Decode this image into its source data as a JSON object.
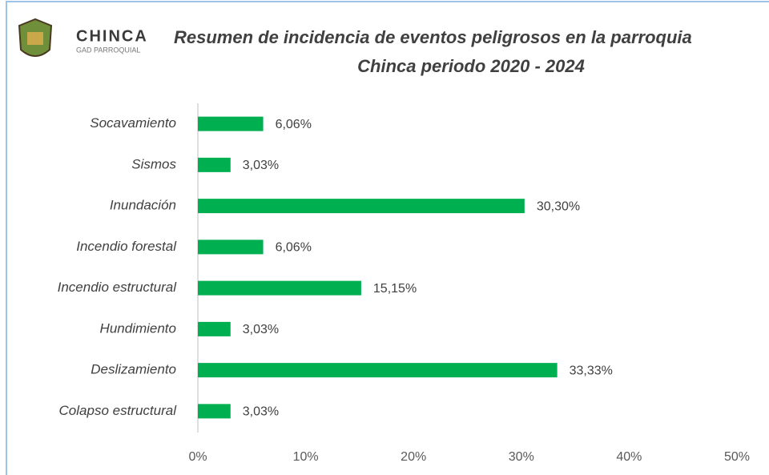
{
  "chart_data": {
    "type": "barh",
    "logo": {
      "name": "CHINCA",
      "subtitle": "GAD PARROQUIAL"
    },
    "title": [
      "Resumen de  incidencia de eventos peligrosos en la parroquia",
      "Chinca periodo 2020 - 2024"
    ],
    "categories": [
      "Socavamiento",
      "Sismos",
      "Inundación",
      "Incendio forestal",
      "Incendio estructural",
      "Hundimiento",
      "Deslizamiento",
      "Colapso estructural"
    ],
    "values": [
      6.06,
      3.03,
      30.3,
      6.06,
      15.15,
      3.03,
      33.33,
      3.03
    ],
    "value_labels": [
      "6,06%",
      "3,03%",
      "30,30%",
      "6,06%",
      "15,15%",
      "3,03%",
      "33,33%",
      "3,03%"
    ],
    "color": "#00b050",
    "xlim": [
      0,
      50
    ],
    "xticks": [
      {
        "value": 0,
        "label": "0%"
      },
      {
        "value": 10,
        "label": "10%"
      },
      {
        "value": 20,
        "label": "20%"
      },
      {
        "value": 30,
        "label": "30%"
      },
      {
        "value": 40,
        "label": "40%"
      },
      {
        "value": 50,
        "label": "50%"
      }
    ],
    "grid": false
  }
}
